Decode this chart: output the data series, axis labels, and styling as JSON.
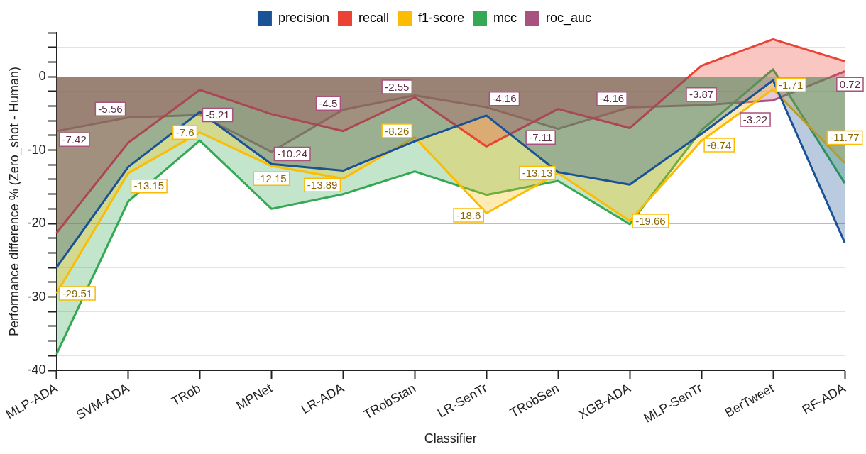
{
  "chart_data": {
    "type": "area",
    "xlabel": "Classifier",
    "ylabel": "Performance difference % (Zero_shot - Human)",
    "categories": [
      "MLP-ADA",
      "SVM-ADA",
      "TRob",
      "MPNet",
      "LR-ADA",
      "TRobStan",
      "LR-SenTr",
      "TRobSen",
      "XGB-ADA",
      "MLP-SenTr",
      "BerTweet",
      "RF-ADA"
    ],
    "series": [
      {
        "name": "precision",
        "color": "#1a5296",
        "values": [
          -26,
          -12.3,
          -4.8,
          -11.9,
          -12.8,
          -8.8,
          -5.3,
          -13.0,
          -14.7,
          -7.8,
          -0.5,
          -22.6
        ]
      },
      {
        "name": "recall",
        "color": "#ea4335",
        "values": [
          -21.3,
          -9,
          -1.8,
          -5.1,
          -7.4,
          -2.8,
          -9.5,
          -4.4,
          -7.0,
          1.5,
          5.1,
          2.1
        ]
      },
      {
        "name": "f1-score",
        "color": "#fbbc04",
        "values": [
          -29.51,
          -13.15,
          -7.6,
          -12.15,
          -13.89,
          -8.26,
          -18.6,
          -13.13,
          -19.66,
          -8.74,
          -1.71,
          -11.77
        ],
        "value_labels": [
          "-29.51",
          "-13.15",
          "-7.6",
          "-12.15",
          "-13.89",
          "-8.26",
          "-18.6",
          "-13.13",
          "-19.66",
          "-8.74",
          "-1.71",
          "-11.77"
        ]
      },
      {
        "name": "mcc",
        "color": "#34a853",
        "values": [
          -37.8,
          -17.0,
          -8.7,
          -18.0,
          -16.0,
          -12.9,
          -16.1,
          -14.2,
          -20.1,
          -7.3,
          1.0,
          -14.5
        ]
      },
      {
        "name": "roc_auc",
        "color": "#a8527e",
        "values": [
          -7.42,
          -5.56,
          -5.21,
          -10.24,
          -4.5,
          -2.55,
          -4.16,
          -7.11,
          -4.16,
          -3.87,
          -3.22,
          0.72
        ],
        "value_labels": [
          "-7.42",
          "-5.56",
          "-5.21",
          "-10.24",
          "-4.5",
          "-2.55",
          "-4.16",
          "-7.11",
          "-4.16",
          "-3.87",
          "-3.22",
          "0.72"
        ]
      }
    ],
    "ylim": [
      -40,
      6
    ],
    "yticks": [
      -40,
      {
        "value": -38,
        "label": null
      },
      {
        "value": -36,
        "label": null
      },
      {
        "value": -34,
        "label": null
      },
      {
        "value": -32,
        "label": null
      },
      -30,
      {
        "value": -28,
        "label": null
      },
      {
        "value": -26,
        "label": null
      },
      {
        "value": -24,
        "label": null
      },
      {
        "value": -22,
        "label": null
      },
      -20,
      {
        "value": -18,
        "label": null
      },
      {
        "value": -16,
        "label": null
      },
      {
        "value": -14,
        "label": null
      },
      {
        "value": -12,
        "label": null
      },
      -10,
      {
        "value": -8,
        "label": null
      },
      {
        "value": -6,
        "label": null
      },
      {
        "value": -4,
        "label": null
      },
      {
        "value": -2,
        "label": null
      },
      0,
      {
        "value": 2,
        "label": null
      },
      {
        "value": 4,
        "label": null
      },
      {
        "value": 6,
        "label": null
      }
    ],
    "grid": "y",
    "legend": "top",
    "marker": "none",
    "line_style": "solid"
  }
}
